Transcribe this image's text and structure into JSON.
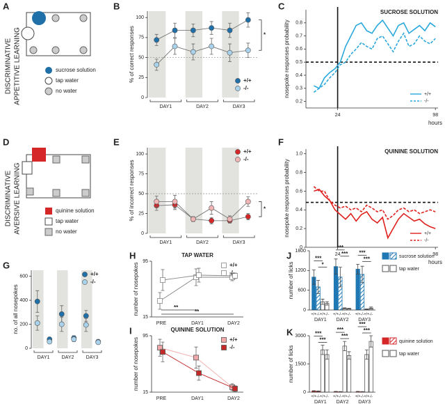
{
  "diagrams": [
    {
      "panel": "A",
      "label": [
        "DISCRIMINATIVE",
        "APPETITIVE LEARNING"
      ],
      "legend": [
        "sucrose solution",
        "tap water",
        "no water"
      ]
    },
    {
      "panel": "D",
      "label": [
        "DISCRIMINATIVE",
        "AVERSIVE LEARNING"
      ],
      "legend": [
        "quinine solution",
        "tap water",
        "no water"
      ]
    }
  ],
  "chart_data": [
    {
      "type": "line",
      "panel": "B",
      "y_label": "% of correct responses",
      "groups": [
        "DAY1",
        "DAY2",
        "DAY3"
      ],
      "shade": true,
      "ref": 50,
      "ylim": [
        0,
        108
      ],
      "yticks": [
        0,
        25,
        50,
        75,
        100
      ],
      "legend": "lower right",
      "annotations": [
        "*"
      ],
      "series": [
        {
          "name": "+/+",
          "color": "#1f6fa8",
          "values": [
            72,
            84,
            84,
            87,
            84,
            97
          ],
          "errors": [
            7,
            9,
            8,
            8,
            9,
            9
          ]
        },
        {
          "name": "-/-",
          "color": "#a9d2ec",
          "values": [
            41,
            64,
            57,
            64,
            56,
            59
          ],
          "errors": [
            7,
            10,
            10,
            10,
            11,
            9
          ]
        }
      ]
    },
    {
      "type": "line",
      "panel": "C",
      "title": "SUCROSE SOLUTION",
      "y_label": "nosepoke responses probability",
      "x_label": "hours",
      "xlim": [
        0,
        100
      ],
      "xticks": [
        24,
        98
      ],
      "vline": 24,
      "ref": 0.5,
      "ylim": [
        0.15,
        0.9
      ],
      "yticks": [
        0.2,
        0.3,
        0.4,
        0.5,
        0.6,
        0.7,
        0.8
      ],
      "legend": "lower right",
      "x": [
        6,
        10,
        14,
        18,
        22,
        26,
        30,
        34,
        38,
        42,
        46,
        50,
        54,
        58,
        62,
        66,
        70,
        74,
        78,
        82,
        86,
        90,
        94,
        98
      ],
      "series": [
        {
          "name": "+/+",
          "color": "#29a8dc",
          "dashed": false,
          "values": [
            0.32,
            0.3,
            0.38,
            0.42,
            0.45,
            0.5,
            0.62,
            0.7,
            0.78,
            0.8,
            0.74,
            0.72,
            0.78,
            0.82,
            0.76,
            0.7,
            0.78,
            0.8,
            0.72,
            0.75,
            0.78,
            0.74,
            0.8,
            0.77
          ]
        },
        {
          "name": "-/-",
          "color": "#29a8dc",
          "dashed": true,
          "values": [
            0.27,
            0.3,
            0.33,
            0.38,
            0.42,
            0.48,
            0.5,
            0.56,
            0.6,
            0.65,
            0.62,
            0.6,
            0.68,
            0.7,
            0.64,
            0.58,
            0.66,
            0.72,
            0.62,
            0.64,
            0.7,
            0.66,
            0.64,
            0.68
          ]
        }
      ]
    },
    {
      "type": "line",
      "panel": "E",
      "y_label": "% of incorrect responses",
      "groups": [
        "DAY1",
        "DAY2",
        "DAY3"
      ],
      "shade": true,
      "ref": 50,
      "ylim": [
        0,
        108
      ],
      "yticks": [
        0,
        25,
        50,
        75,
        100
      ],
      "legend": "upper right",
      "annotations": [
        "*"
      ],
      "series": [
        {
          "name": "+/+",
          "color": "#d62728",
          "values": [
            35,
            36,
            18,
            16,
            16,
            21
          ],
          "errors": [
            6,
            6,
            3,
            4,
            3,
            4
          ]
        },
        {
          "name": "-/-",
          "color": "#f2b5b5",
          "values": [
            40,
            40,
            18,
            32,
            18,
            40
          ],
          "errors": [
            7,
            8,
            3,
            8,
            4,
            6
          ]
        }
      ]
    },
    {
      "type": "line",
      "panel": "F",
      "title": "QUININE SOLUTION",
      "y_label": "nosepoke responses probability",
      "x_label": "hours",
      "xlim": [
        0,
        100
      ],
      "xticks": [
        24,
        98
      ],
      "vline": 24,
      "ref": 0.48,
      "ylim": [
        0,
        1.05
      ],
      "yticks": [
        0,
        0.2,
        0.4,
        0.6,
        0.8,
        {
          "value": 1,
          "label": "1.0"
        }
      ],
      "legend": "lower right",
      "x": [
        6,
        10,
        14,
        18,
        22,
        26,
        30,
        34,
        38,
        42,
        46,
        50,
        54,
        58,
        62,
        66,
        70,
        74,
        78,
        82,
        86,
        90,
        94,
        98
      ],
      "series": [
        {
          "name": "+/+",
          "color": "#e0201c",
          "dashed": false,
          "values": [
            0.6,
            0.62,
            0.55,
            0.5,
            0.4,
            0.35,
            0.3,
            0.36,
            0.28,
            0.35,
            0.38,
            0.3,
            0.26,
            0.32,
            0.1,
            0.2,
            0.3,
            0.36,
            0.32,
            0.28,
            0.3,
            0.25,
            0.22,
            0.2
          ]
        },
        {
          "name": "-/-",
          "color": "#e0201c",
          "dashed": true,
          "values": [
            0.65,
            0.6,
            0.6,
            0.5,
            0.45,
            0.42,
            0.44,
            0.4,
            0.42,
            0.38,
            0.45,
            0.42,
            0.38,
            0.4,
            0.3,
            0.34,
            0.4,
            0.42,
            0.38,
            0.4,
            0.36,
            0.38,
            0.4,
            0.38
          ]
        }
      ]
    },
    {
      "type": "dot",
      "panel": "G",
      "y_label": "no. of all nosepokes",
      "groups": [
        "DAY1",
        "DAY2",
        "DAY3"
      ],
      "shade": true,
      "ylim": [
        0,
        650
      ],
      "yticks": [
        0,
        200,
        400,
        600
      ],
      "legend": "upper right",
      "series": [
        {
          "name": "+/+",
          "color": "#1f6fa8",
          "values": [
            390,
            75,
            285,
            85,
            270,
            55
          ],
          "errors": [
            90,
            15,
            70,
            20,
            45,
            10
          ]
        },
        {
          "name": "-/-",
          "color": "#a9d2ec",
          "values": [
            210,
            55,
            200,
            75,
            195,
            50
          ],
          "errors": [
            60,
            15,
            60,
            20,
            55,
            10
          ]
        }
      ]
    },
    {
      "type": "line",
      "panel": "H",
      "title": "TAP WATER",
      "y_label": "number of nosepokes",
      "categories": [
        "PRE",
        "DAY1",
        "DAY2"
      ],
      "ylim": [
        15,
        95
      ],
      "yticks": [
        15,
        95
      ],
      "legend": "upper right",
      "marker": "square",
      "open": true,
      "annotations": [
        "**",
        "**"
      ],
      "series": [
        {
          "name": "+/+",
          "color": "#888888",
          "values": [
            38,
            72,
            72
          ],
          "errors": [
            12,
            12,
            5
          ]
        },
        {
          "name": "-/-",
          "color": "#888888",
          "values": [
            68,
            75,
            74
          ],
          "errors": [
            15,
            10,
            4
          ]
        }
      ]
    },
    {
      "type": "line",
      "panel": "I",
      "title": "QUININE SOLUTION",
      "y_label": "number of nosepokes",
      "categories": [
        "PRE",
        "DAY1",
        "DAY2"
      ],
      "ylim": [
        15,
        95
      ],
      "yticks": [
        15,
        95
      ],
      "legend": "upper right",
      "marker": "square",
      "open": false,
      "series": [
        {
          "name": "+/+",
          "color": "#f0a8a8",
          "values": [
            78,
            64,
            22
          ],
          "errors": [
            12,
            15,
            5
          ]
        },
        {
          "name": "-/-",
          "color": "#c62828",
          "values": [
            72,
            42,
            20
          ],
          "errors": [
            14,
            10,
            4
          ]
        }
      ]
    },
    {
      "type": "bar",
      "panel": "J",
      "y_label": "number of licks",
      "groups": [
        "DAY1",
        "DAY2",
        "DAY3"
      ],
      "genotypes": [
        "+/+",
        "-/-"
      ],
      "ylim": [
        0,
        1800
      ],
      "yticks": [
        0,
        600,
        1200,
        1800
      ],
      "legend": "right",
      "annotations": [
        "***",
        "*",
        "***",
        "***",
        "***",
        "***"
      ],
      "series": [
        {
          "name": "sucrose solution",
          "color": "#1f78b4",
          "values": [
            1000,
            700,
            1320,
            1000,
            1240,
            1080
          ],
          "errors": [
            220,
            200,
            230,
            300,
            150,
            250
          ]
        },
        {
          "name": "tap water",
          "color": "#ffffff",
          "values": [
            250,
            200,
            50,
            40,
            20,
            60
          ],
          "errors": [
            80,
            50,
            15,
            10,
            10,
            30
          ]
        }
      ]
    },
    {
      "type": "bar",
      "panel": "K",
      "y_label": "number of licks",
      "groups": [
        "DAY1",
        "DAY2",
        "DAY3"
      ],
      "genotypes": [
        "+/+",
        "-/-"
      ],
      "ylim": [
        0,
        3000
      ],
      "yticks": [
        0,
        1500,
        3000
      ],
      "legend": "right",
      "annotations": [
        "***",
        "***",
        "***",
        "***",
        "***",
        "***"
      ],
      "series": [
        {
          "name": "quinine solution",
          "color": "#d62728",
          "values": [
            60,
            50,
            30,
            20,
            30,
            20
          ],
          "errors": [
            20,
            15,
            10,
            10,
            10,
            10
          ]
        },
        {
          "name": "tap water",
          "color": "#ffffff",
          "values": [
            2250,
            2000,
            2450,
            1950,
            2000,
            2700
          ],
          "errors": [
            250,
            250,
            250,
            200,
            250,
            300
          ]
        }
      ]
    }
  ]
}
